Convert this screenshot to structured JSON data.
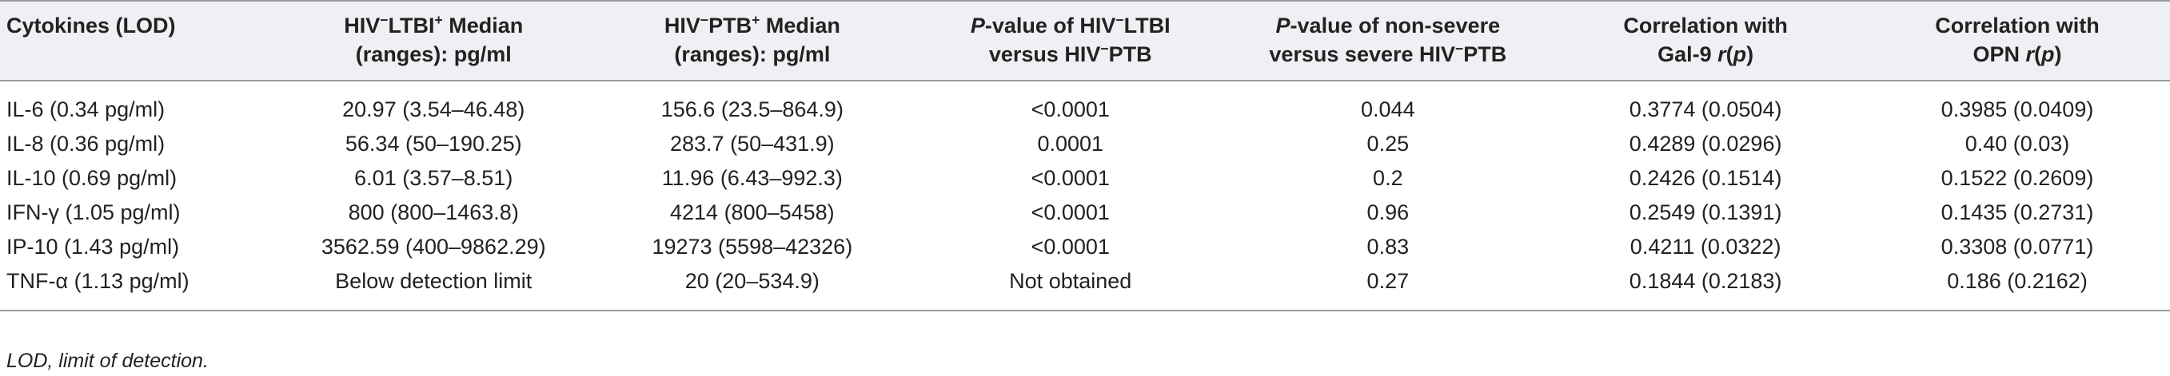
{
  "table": {
    "headers": [
      {
        "lines": [
          {
            "parts": [
              {
                "t": "Cytokines (LOD)"
              }
            ]
          }
        ]
      },
      {
        "lines": [
          {
            "parts": [
              {
                "t": "HIV"
              },
              {
                "t": "−",
                "sup": true
              },
              {
                "t": "LTBI"
              },
              {
                "t": "+",
                "sup": true
              },
              {
                "t": " Median"
              }
            ]
          },
          {
            "parts": [
              {
                "t": "(ranges): pg/ml"
              }
            ]
          }
        ]
      },
      {
        "lines": [
          {
            "parts": [
              {
                "t": "HIV"
              },
              {
                "t": "−",
                "sup": true
              },
              {
                "t": "PTB"
              },
              {
                "t": "+",
                "sup": true
              },
              {
                "t": " Median"
              }
            ]
          },
          {
            "parts": [
              {
                "t": "(ranges): pg/ml"
              }
            ]
          }
        ]
      },
      {
        "lines": [
          {
            "parts": [
              {
                "t": "P",
                "i": true
              },
              {
                "t": "-value of HIV"
              },
              {
                "t": "−",
                "sup": true
              },
              {
                "t": "LTBI"
              }
            ]
          },
          {
            "parts": [
              {
                "t": "versus HIV"
              },
              {
                "t": "−",
                "sup": true
              },
              {
                "t": "PTB"
              }
            ]
          }
        ]
      },
      {
        "lines": [
          {
            "parts": [
              {
                "t": "P",
                "i": true
              },
              {
                "t": "-value of non-severe"
              }
            ]
          },
          {
            "parts": [
              {
                "t": "versus severe HIV"
              },
              {
                "t": "−",
                "sup": true
              },
              {
                "t": "PTB"
              }
            ]
          }
        ]
      },
      {
        "lines": [
          {
            "parts": [
              {
                "t": "Correlation with"
              }
            ]
          },
          {
            "parts": [
              {
                "t": "Gal-9 "
              },
              {
                "t": "r",
                "i": true
              },
              {
                "t": "("
              },
              {
                "t": "p",
                "i": true
              },
              {
                "t": ")"
              }
            ]
          }
        ]
      },
      {
        "lines": [
          {
            "parts": [
              {
                "t": "Correlation with"
              }
            ]
          },
          {
            "parts": [
              {
                "t": "OPN "
              },
              {
                "t": "r",
                "i": true
              },
              {
                "t": "("
              },
              {
                "t": "p",
                "i": true
              },
              {
                "t": ")"
              }
            ]
          }
        ]
      }
    ],
    "rows": [
      [
        "IL-6 (0.34 pg/ml)",
        "20.97 (3.54–46.48)",
        "156.6 (23.5–864.9)",
        "<0.0001",
        "0.044",
        "0.3774 (0.0504)",
        "0.3985 (0.0409)"
      ],
      [
        "IL-8 (0.36 pg/ml)",
        "56.34 (50–190.25)",
        "283.7 (50–431.9)",
        "0.0001",
        "0.25",
        "0.4289 (0.0296)",
        "0.40 (0.03)"
      ],
      [
        "IL-10 (0.69 pg/ml)",
        "6.01 (3.57–8.51)",
        "11.96 (6.43–992.3)",
        "<0.0001",
        "0.2",
        "0.2426 (0.1514)",
        "0.1522 (0.2609)"
      ],
      [
        "IFN-γ (1.05 pg/ml)",
        "800 (800–1463.8)",
        "4214 (800–5458)",
        "<0.0001",
        "0.96",
        "0.2549 (0.1391)",
        "0.1435 (0.2731)"
      ],
      [
        "IP-10 (1.43 pg/ml)",
        "3562.59 (400–9862.29)",
        "19273 (5598–42326)",
        "<0.0001",
        "0.83",
        "0.4211 (0.0322)",
        "0.3308 (0.0771)"
      ],
      [
        "TNF-α (1.13 pg/ml)",
        "Below detection limit",
        "20 (20–534.9)",
        "Not obtained",
        "0.27",
        "0.1844 (0.2183)",
        "0.186 (0.2162)"
      ]
    ]
  },
  "footnote": "LOD, limit of detection."
}
